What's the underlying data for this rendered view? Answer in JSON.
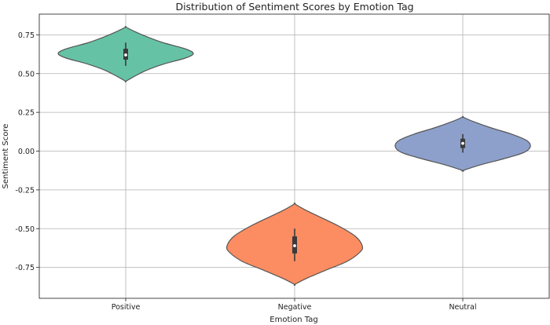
{
  "chart_data": {
    "type": "violin",
    "title": "Distribution of Sentiment Scores by Emotion Tag",
    "xlabel": "Emotion Tag",
    "ylabel": "Sentiment Score",
    "ylim": [
      -0.95,
      0.83
    ],
    "yticks": [
      "0.75",
      "0.50",
      "0.25",
      "0.00",
      "-0.25",
      "-0.50",
      "-0.75"
    ],
    "ytick_values": [
      0.75,
      0.5,
      0.25,
      0.0,
      -0.25,
      -0.5,
      -0.75
    ],
    "grid": true,
    "categories": [
      "Positive",
      "Negative",
      "Neutral"
    ],
    "series": [
      {
        "category": "Positive",
        "color": "#66c2a5",
        "min": 0.45,
        "max": 0.8,
        "q1": 0.59,
        "median": 0.62,
        "q3": 0.66,
        "whisker_low": 0.55,
        "whisker_high": 0.7,
        "density": [
          [
            0.45,
            0.0
          ],
          [
            0.48,
            0.12
          ],
          [
            0.52,
            0.3
          ],
          [
            0.56,
            0.55
          ],
          [
            0.6,
            0.88
          ],
          [
            0.63,
            1.0
          ],
          [
            0.66,
            0.88
          ],
          [
            0.7,
            0.55
          ],
          [
            0.74,
            0.3
          ],
          [
            0.77,
            0.14
          ],
          [
            0.8,
            0.0
          ]
        ]
      },
      {
        "category": "Negative",
        "color": "#fc8d62",
        "min": -0.86,
        "max": -0.34,
        "q1": -0.66,
        "median": -0.61,
        "q3": -0.55,
        "whisker_low": -0.71,
        "whisker_high": -0.5,
        "density": [
          [
            -0.86,
            0.0
          ],
          [
            -0.82,
            0.18
          ],
          [
            -0.77,
            0.45
          ],
          [
            -0.71,
            0.78
          ],
          [
            -0.65,
            0.97
          ],
          [
            -0.61,
            1.0
          ],
          [
            -0.55,
            0.9
          ],
          [
            -0.49,
            0.68
          ],
          [
            -0.43,
            0.4
          ],
          [
            -0.38,
            0.16
          ],
          [
            -0.34,
            0.0
          ]
        ]
      },
      {
        "category": "Neutral",
        "color": "#8da0cb",
        "min": -0.125,
        "max": 0.22,
        "q1": 0.02,
        "median": 0.05,
        "q3": 0.08,
        "whisker_low": -0.01,
        "whisker_high": 0.11,
        "density": [
          [
            -0.125,
            0.0
          ],
          [
            -0.09,
            0.25
          ],
          [
            -0.05,
            0.6
          ],
          [
            -0.01,
            0.9
          ],
          [
            0.03,
            1.0
          ],
          [
            0.07,
            0.94
          ],
          [
            0.11,
            0.72
          ],
          [
            0.15,
            0.42
          ],
          [
            0.19,
            0.16
          ],
          [
            0.22,
            0.0
          ]
        ]
      }
    ]
  }
}
